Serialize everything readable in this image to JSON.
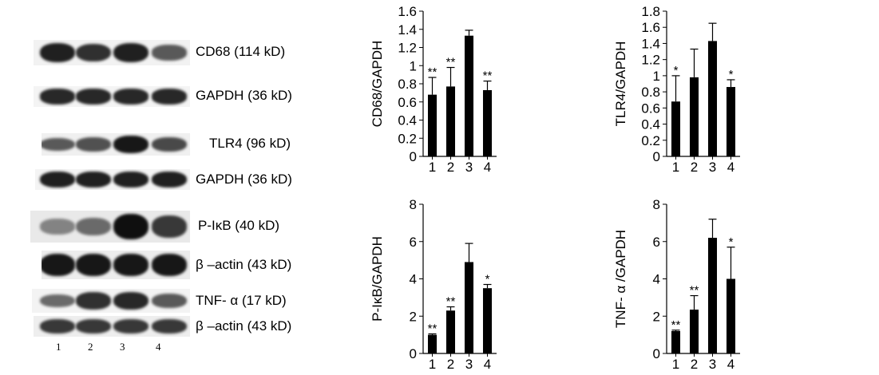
{
  "blot_rows": [
    {
      "label": "CD68 (114 kD)",
      "intensities": [
        0.9,
        0.8,
        0.9,
        0.55
      ]
    },
    {
      "label": "GAPDH (36 kD)",
      "intensities": [
        0.85,
        0.85,
        0.85,
        0.85
      ]
    },
    {
      "label": "TLR4 (96 kD)",
      "intensities": [
        0.55,
        0.6,
        0.95,
        0.65
      ]
    },
    {
      "label": "GAPDH (36 kD)",
      "intensities": [
        0.9,
        0.9,
        0.9,
        0.9
      ]
    },
    {
      "label": "P-IκB (40 kD)",
      "intensities": [
        0.3,
        0.45,
        1.0,
        0.75
      ]
    },
    {
      "label": "β –actin (43 kD)",
      "intensities": [
        0.95,
        0.95,
        0.95,
        0.95
      ]
    },
    {
      "label": "TNF- α (17 kD)",
      "intensities": [
        0.45,
        0.8,
        0.85,
        0.55
      ]
    },
    {
      "label": "β –actin (43 kD)",
      "intensities": [
        0.75,
        0.75,
        0.75,
        0.75
      ]
    }
  ],
  "lane_numbers": [
    "1",
    "2",
    "3",
    "4"
  ],
  "chart_data": [
    {
      "type": "bar",
      "ylabel": "CD68/GAPDH",
      "categories": [
        "1",
        "2",
        "3",
        "4"
      ],
      "values": [
        0.68,
        0.77,
        1.33,
        0.73
      ],
      "errors": [
        0.19,
        0.21,
        0.06,
        0.1
      ],
      "significance": [
        "**",
        "**",
        "",
        "**"
      ],
      "ylim": [
        0,
        1.6
      ],
      "yticks": [
        "0",
        "0.2",
        "0.4",
        "0.6",
        "0.8",
        "1",
        "1.2",
        "1.4",
        "1.6"
      ],
      "grid": false
    },
    {
      "type": "bar",
      "ylabel": "TLR4/GAPDH",
      "categories": [
        "1",
        "2",
        "3",
        "4"
      ],
      "values": [
        0.68,
        0.98,
        1.43,
        0.86
      ],
      "errors": [
        0.32,
        0.35,
        0.22,
        0.09
      ],
      "significance": [
        "*",
        "",
        "",
        "*"
      ],
      "ylim": [
        0,
        1.8
      ],
      "yticks": [
        "0",
        "0.2",
        "0.4",
        "0.6",
        "0.8",
        "1",
        "1.2",
        "1.4",
        "1.6",
        "1.8"
      ],
      "grid": false
    },
    {
      "type": "bar",
      "ylabel": "P-IκB/GAPDH",
      "categories": [
        "1",
        "2",
        "3",
        "4"
      ],
      "values": [
        1.0,
        2.3,
        4.9,
        3.5
      ],
      "errors": [
        0.05,
        0.2,
        1.0,
        0.2
      ],
      "significance": [
        "**",
        "**",
        "",
        "*"
      ],
      "ylim": [
        0,
        8
      ],
      "yticks": [
        "0",
        "2",
        "4",
        "6",
        "8"
      ],
      "grid": false
    },
    {
      "type": "bar",
      "ylabel": "TNF- α /GAPDH",
      "categories": [
        "1",
        "2",
        "3",
        "4"
      ],
      "values": [
        1.2,
        2.35,
        6.2,
        4.0
      ],
      "errors": [
        0.05,
        0.75,
        1.0,
        1.7
      ],
      "significance": [
        "**",
        "**",
        "",
        "*"
      ],
      "ylim": [
        0,
        8
      ],
      "yticks": [
        "0",
        "2",
        "4",
        "6",
        "8"
      ],
      "grid": false
    }
  ]
}
